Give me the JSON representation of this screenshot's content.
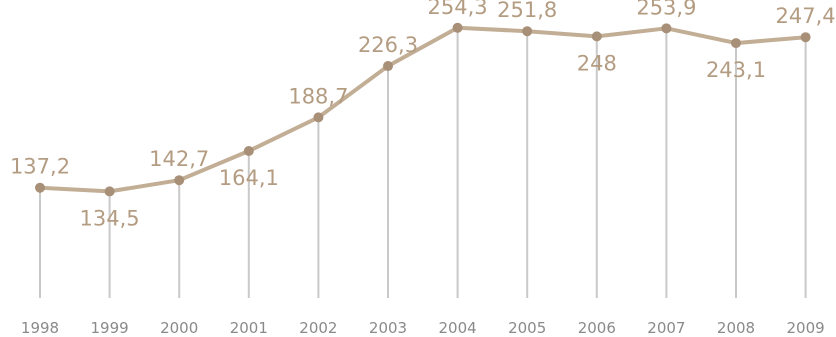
{
  "chart_data": {
    "type": "line",
    "title": "",
    "xlabel": "",
    "ylabel": "",
    "categories": [
      "1998",
      "1999",
      "2000",
      "2001",
      "2002",
      "2003",
      "2004",
      "2005",
      "2006",
      "2007",
      "2008",
      "2009"
    ],
    "series": [
      {
        "values": [
          137.2,
          134.5,
          142.7,
          164.1,
          188.7,
          226.3,
          254.3,
          251.8,
          248,
          253.9,
          243.1,
          247.4
        ],
        "labels": [
          "137,2",
          "134,5",
          "142,7",
          "164,1",
          "188,7",
          "226,3",
          "254,3",
          "251,8",
          "248",
          "253,9",
          "243,1",
          "247,4"
        ],
        "label_position": [
          "above",
          "below",
          "above",
          "below",
          "above",
          "above",
          "above",
          "above",
          "below",
          "above",
          "below",
          "above"
        ]
      }
    ],
    "ylim": [
      55,
      260
    ],
    "grid": false,
    "legend": "none",
    "colors": {
      "line": "#c2ad95",
      "point": "#a89078",
      "label": "#b39c82",
      "drop": "#c9c9c9",
      "tick": "#8a8a8a"
    }
  }
}
